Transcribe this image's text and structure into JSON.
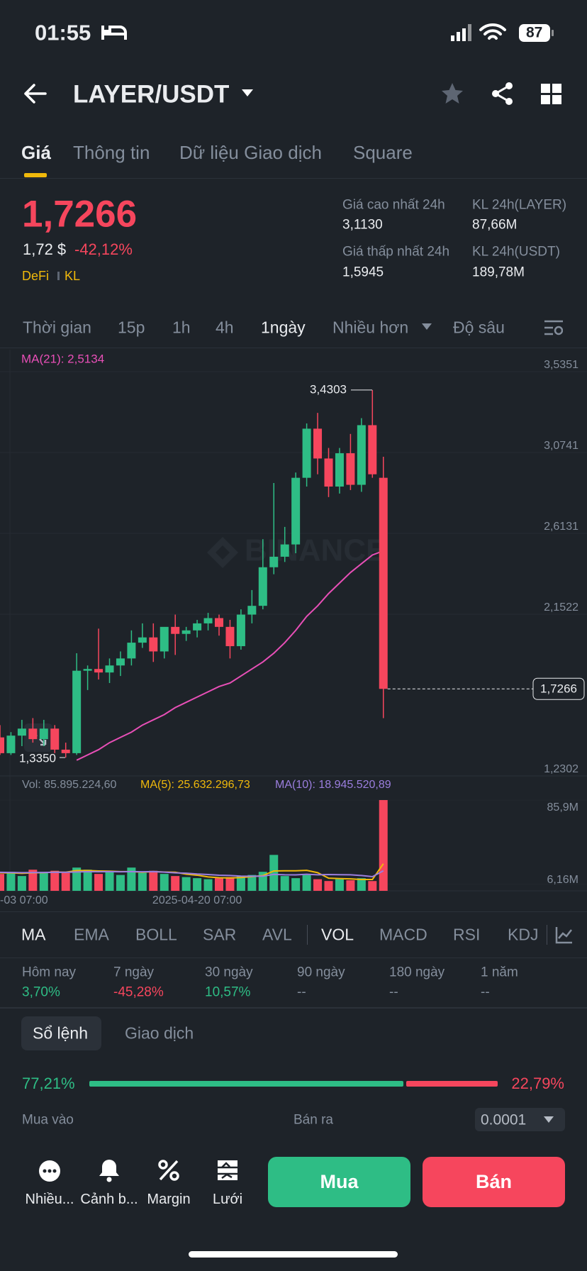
{
  "status_bar": {
    "time": "01:55",
    "battery": "87"
  },
  "header": {
    "pair": "LAYER/USDT"
  },
  "tabs": [
    "Giá",
    "Thông tin",
    "Dữ liệu Giao dịch",
    "Square"
  ],
  "price": {
    "last": "1,7266",
    "usd": "1,72 $",
    "change": "-42,12%",
    "tags": [
      "DeFi",
      "KL"
    ]
  },
  "stats": [
    {
      "label": "Giá cao nhất 24h",
      "value": "3,1130"
    },
    {
      "label": "KL 24h(LAYER)",
      "value": "87,66M"
    },
    {
      "label": "Giá thấp nhất 24h",
      "value": "1,5945"
    },
    {
      "label": "KL 24h(USDT)",
      "value": "189,78M"
    }
  ],
  "intervals": [
    "Thời gian",
    "15p",
    "1h",
    "4h",
    "1ngày",
    "Nhiều hơn",
    "Độ sâu"
  ],
  "chart_data": {
    "type": "candlestick",
    "watermark": "BINANCE",
    "up_color": "#2ebd85",
    "down_color": "#f6465d",
    "categories": [
      null,
      null,
      "-03 07:00",
      null,
      null,
      null,
      null,
      null,
      null,
      null,
      null,
      null,
      null,
      null,
      null,
      null,
      null,
      null,
      "2025-04-20 07:00",
      null,
      null,
      null,
      null,
      null,
      null,
      null,
      null,
      null,
      null,
      null,
      null,
      null,
      null,
      null,
      null,
      null
    ],
    "open": [
      1.45,
      1.36,
      1.46,
      1.5,
      1.44,
      1.5,
      1.38,
      1.36,
      1.83,
      1.84,
      1.82,
      1.86,
      1.9,
      1.99,
      2.02,
      1.94,
      2.08,
      2.04,
      2.06,
      2.1,
      2.13,
      2.08,
      1.97,
      2.15,
      2.2,
      2.42,
      2.48,
      2.55,
      2.93,
      3.21,
      3.04,
      2.88,
      3.07,
      2.89,
      3.23,
      2.93
    ],
    "high": [
      1.52,
      1.48,
      1.55,
      1.56,
      1.55,
      1.52,
      1.42,
      1.93,
      1.86,
      2.07,
      1.9,
      1.94,
      2.06,
      2.1,
      2.1,
      2.07,
      2.15,
      2.08,
      2.12,
      2.16,
      2.15,
      2.12,
      2.18,
      2.29,
      2.58,
      2.9,
      2.65,
      2.96,
      3.24,
      3.3,
      3.1,
      3.1,
      3.18,
      3.27,
      3.4303,
      3.05
    ],
    "low": [
      1.35,
      1.35,
      1.4,
      1.42,
      1.4,
      1.36,
      1.335,
      1.35,
      1.72,
      1.78,
      1.76,
      1.8,
      1.86,
      1.96,
      1.88,
      1.9,
      1.92,
      2.0,
      2.02,
      2.06,
      2.03,
      1.9,
      1.95,
      2.1,
      2.18,
      2.38,
      2.45,
      2.5,
      2.88,
      2.95,
      2.82,
      2.84,
      2.86,
      2.85,
      2.93,
      1.56
    ],
    "close": [
      1.36,
      1.46,
      1.5,
      1.44,
      1.5,
      1.38,
      1.36,
      1.83,
      1.84,
      1.82,
      1.86,
      1.9,
      1.99,
      2.02,
      1.94,
      2.08,
      2.04,
      2.06,
      2.1,
      2.13,
      2.08,
      1.97,
      2.15,
      2.2,
      2.42,
      2.48,
      2.55,
      2.93,
      3.21,
      3.04,
      2.88,
      3.07,
      2.89,
      3.23,
      2.95,
      1.7266
    ],
    "ylim": [
      1.2302,
      3.5351
    ],
    "yticks": [
      {
        "value": 3.5351,
        "label": "3,5351"
      },
      {
        "value": 3.0741,
        "label": "3,0741"
      },
      {
        "value": 2.6131,
        "label": "2,6131"
      },
      {
        "value": 2.1522,
        "label": "2,1522"
      },
      {
        "value": 1.2302,
        "label": "1,2302"
      }
    ],
    "ma": {
      "name": "MA(21): 2,5134",
      "color": "#e84fb7",
      "values": [
        null,
        null,
        null,
        null,
        null,
        null,
        null,
        1.32,
        1.35,
        1.38,
        1.42,
        1.45,
        1.48,
        1.52,
        1.55,
        1.58,
        1.62,
        1.65,
        1.68,
        1.71,
        1.74,
        1.76,
        1.8,
        1.84,
        1.88,
        1.93,
        1.99,
        2.06,
        2.14,
        2.2,
        2.27,
        2.33,
        2.39,
        2.44,
        2.49,
        2.5134
      ]
    },
    "last_price": {
      "value": 1.7266,
      "label": "1,7266"
    },
    "annotations": [
      {
        "value": 3.4303,
        "label": "3,4303"
      },
      {
        "value": 1.335,
        "label": "1,3350"
      }
    ],
    "volume": {
      "name": "Vol: 85.895.224,60",
      "values": [
        16000000,
        18000000,
        14000000,
        20000000,
        18000000,
        19000000,
        17000000,
        22000000,
        20000000,
        16000000,
        18000000,
        15000000,
        22000000,
        17000000,
        19000000,
        16000000,
        14000000,
        13000000,
        12000000,
        11000000,
        12000000,
        13000000,
        14000000,
        15000000,
        18000000,
        34000000,
        14000000,
        12000000,
        15000000,
        11000000,
        9300000,
        11000000,
        10000000,
        12000000,
        9260000,
        85895224.6
      ],
      "ylim": [
        0,
        85900000
      ],
      "yticks": [
        {
          "value": 85900000,
          "label": "85,9M"
        },
        {
          "value": 6160000,
          "label": "6,16M"
        }
      ]
    },
    "volume_ma": [
      {
        "name": "MA(5): 25.632.296,73",
        "color": "#f0b90b",
        "values": [
          17000000,
          17000000,
          16500000,
          17000000,
          17200000,
          17800000,
          17600000,
          19200000,
          19200000,
          18800000,
          18600000,
          18200000,
          18200000,
          17600000,
          18200000,
          17800000,
          17600000,
          15800000,
          14800000,
          13200000,
          12400000,
          12200000,
          12600000,
          13400000,
          14400000,
          18800000,
          19000000,
          19000000,
          19400000,
          17200000,
          12000000,
          11600000,
          11300000,
          10700000,
          10700000,
          25632296.73
        ]
      },
      {
        "name": "MA(10): 18.945.520,89",
        "color": "#9b7ede",
        "values": [
          17500000,
          17400000,
          17200000,
          17300000,
          17400000,
          17600000,
          17500000,
          17900000,
          18100000,
          18000000,
          18200000,
          18000000,
          18200000,
          18000000,
          18200000,
          17700000,
          17000000,
          16700000,
          15900000,
          15400000,
          14800000,
          14500000,
          13900000,
          13800000,
          13800000,
          15600000,
          15200000,
          15100000,
          15700000,
          15200000,
          15400000,
          15300000,
          15200000,
          14500000,
          13400000,
          18945520.89
        ]
      }
    ]
  },
  "indicators": [
    "MA",
    "EMA",
    "BOLL",
    "SAR",
    "AVL",
    "VOL",
    "MACD",
    "RSI",
    "KDJ"
  ],
  "performance": [
    {
      "label": "Hôm nay",
      "value": "3,70%"
    },
    {
      "label": "7 ngày",
      "value": "-45,28%"
    },
    {
      "label": "30 ngày",
      "value": "10,57%"
    },
    {
      "label": "90 ngày",
      "value": "--"
    },
    {
      "label": "180 ngày",
      "value": "--"
    },
    {
      "label": "1 năm",
      "value": "--"
    }
  ],
  "order_tabs": [
    "Sổ lệnh",
    "Giao dịch"
  ],
  "order_book": {
    "buy_ratio": {
      "value": 77.21,
      "label": "77,21%"
    },
    "sell_ratio": {
      "value": 22.79,
      "label": "22,79%"
    },
    "buy_label": "Mua vào",
    "sell_label": "Bán ra",
    "precision": "0.0001"
  },
  "bottom_nav": [
    "Nhiều...",
    "Cảnh b...",
    "Margin",
    "Lưới"
  ],
  "buttons": [
    "Mua",
    "Bán"
  ]
}
